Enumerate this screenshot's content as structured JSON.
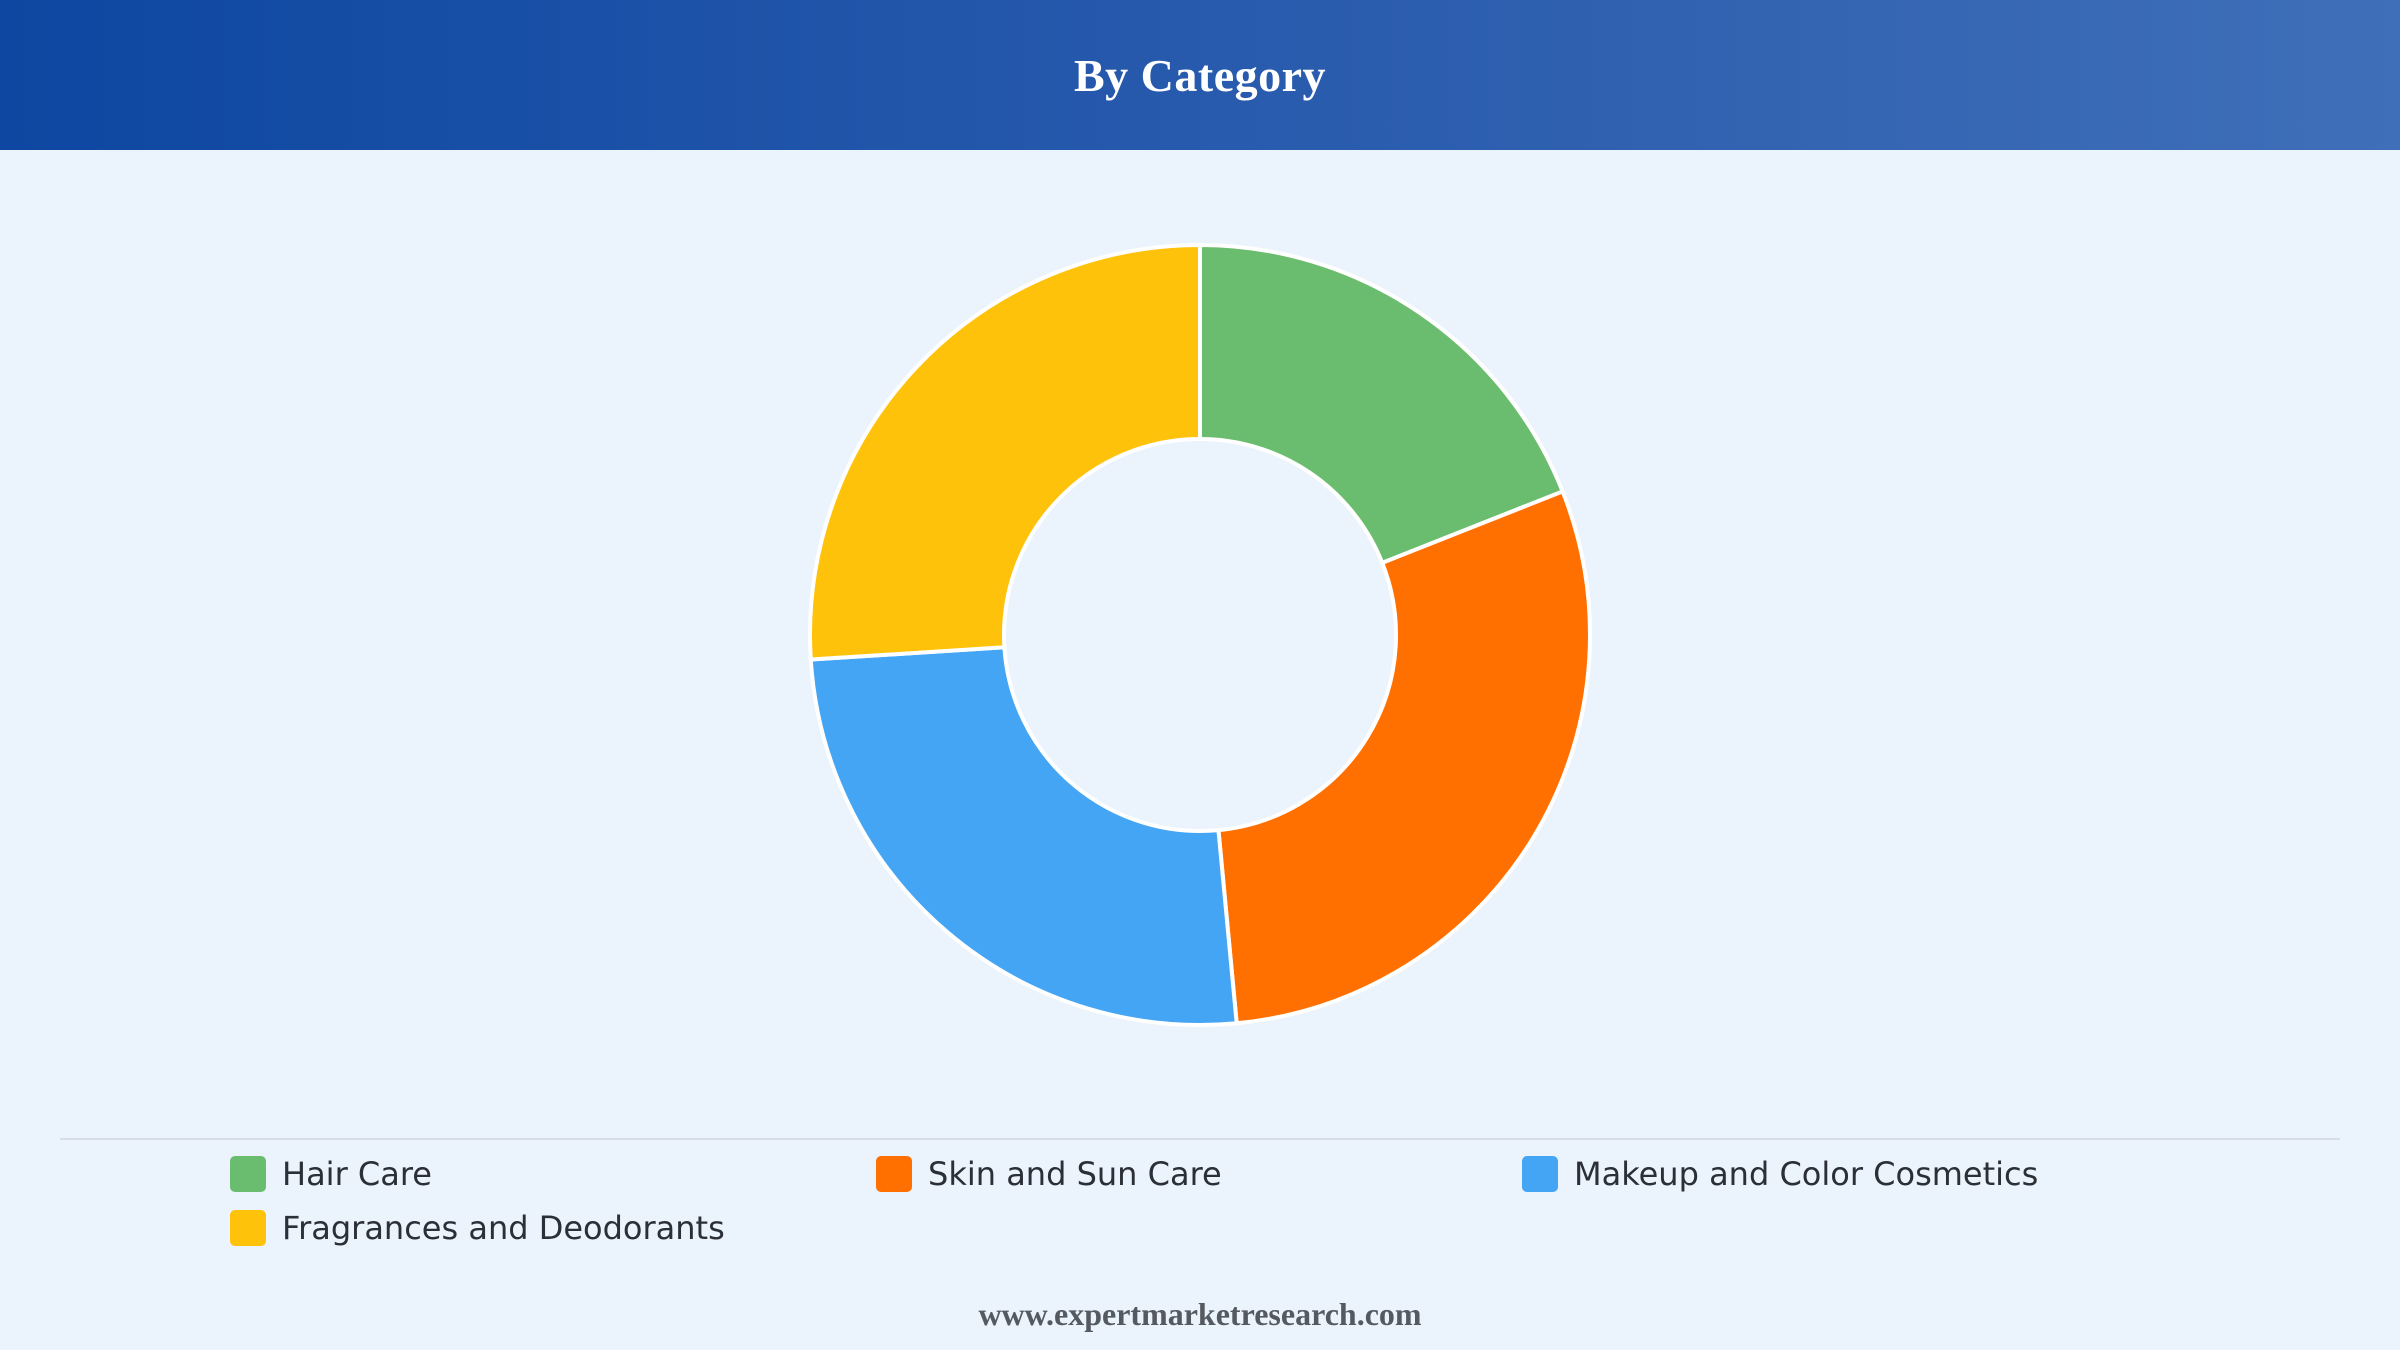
{
  "header": {
    "title": "By Category"
  },
  "colors": {
    "background": "#EBF3FC",
    "header_start": "#0D47A1",
    "header_end": "#3F6FB8",
    "slice_border": "#FFFFFF"
  },
  "chart_data": {
    "type": "pie",
    "subtype": "donut",
    "title": "By Category",
    "legend_position": "bottom",
    "slices": [
      {
        "label": "Hair Care",
        "value": 19.0,
        "color": "#6ABD6E"
      },
      {
        "label": "Skin and Sun Care",
        "value": 29.5,
        "color": "#FF7000"
      },
      {
        "label": "Makeup and Color Cosmetics",
        "value": 25.5,
        "color": "#44A5F5"
      },
      {
        "label": "Fragrances and Deodorants",
        "value": 26.0,
        "color": "#FFC20A"
      }
    ]
  },
  "footer": {
    "text": "www.expertmarketresearch.com"
  }
}
